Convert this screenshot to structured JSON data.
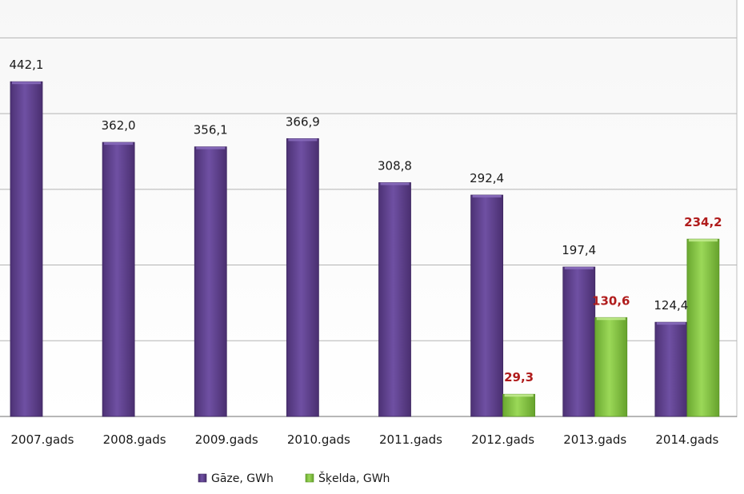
{
  "chart_data": {
    "type": "bar",
    "categories": [
      "2007.gads",
      "2008.gads",
      "2009.gads",
      "2010.gads",
      "2011.gads",
      "2012.gads",
      "2013.gads",
      "2014.gads"
    ],
    "series": [
      {
        "name": "Gāze, GWh",
        "color": "#6a4a9c",
        "label_color": "#1a1a1a",
        "values": [
          442.1,
          362.0,
          356.1,
          366.9,
          308.8,
          292.4,
          197.4,
          124.4
        ],
        "value_labels": [
          "442,1",
          "362,0",
          "356,1",
          "366,9",
          "308,8",
          "292,4",
          "197,4",
          "124,4"
        ]
      },
      {
        "name": "Šķelda, GWh",
        "color": "#92d050",
        "label_color": "#b01c1c",
        "values": [
          null,
          null,
          null,
          null,
          null,
          29.3,
          130.6,
          234.2
        ],
        "value_labels": [
          "",
          "",
          "",
          "",
          "",
          "29,3",
          "130,6",
          "234,2"
        ]
      }
    ],
    "ylim": [
      0,
      550
    ],
    "gridline_step": 100,
    "grid": true,
    "legend_position": "bottom-left"
  }
}
